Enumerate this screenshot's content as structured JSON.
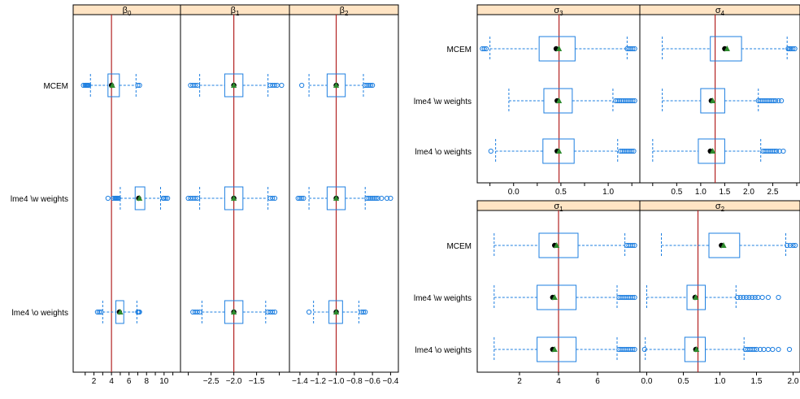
{
  "colors": {
    "strip_bg": "#FFE4C4",
    "box": "#1E7FE0",
    "median": "#000000",
    "mean": "#2E8B2E",
    "truth_line": "#B22222",
    "frame": "#000000"
  },
  "methods": [
    "MCEM",
    "lme4 \\w weights",
    "lme4 \\o weights"
  ],
  "chart_data": [
    {
      "type": "boxplot",
      "layout": "left",
      "panels": [
        {
          "id": "beta0",
          "symbol": "β",
          "sub": "0",
          "xlim": [
            0.0,
            11.5
          ],
          "ticks": [
            2,
            4,
            6,
            8,
            10
          ],
          "tick_labels": [
            "2",
            "4",
            "6",
            "8",
            "10"
          ],
          "minor_ticks": [
            1,
            3,
            5,
            7,
            9,
            11
          ],
          "truth": 4.0,
          "stats": [
            {
              "method": "MCEM",
              "whisker_low": 1.6,
              "q1": 3.6,
              "median": 4.0,
              "q3": 4.9,
              "whisker_high": 6.8,
              "mean": 4.1,
              "outliers": [
                0.8,
                1.0,
                1.1,
                1.2,
                1.3,
                1.4,
                7.0,
                7.2
              ]
            },
            {
              "method": "lme4 \\w weights",
              "whisker_low": 5.0,
              "q1": 6.7,
              "median": 7.1,
              "q3": 7.8,
              "whisker_high": 9.6,
              "mean": 7.2,
              "outliers": [
                3.6,
                4.2,
                4.4,
                4.5,
                4.6,
                4.7,
                4.8,
                9.9,
                10.0,
                10.2,
                10.4
              ]
            },
            {
              "method": "lme4 \\o weights",
              "whisker_low": 3.0,
              "q1": 4.5,
              "median": 4.9,
              "q3": 5.4,
              "whisker_high": 6.9,
              "mean": 5.0,
              "outliers": [
                2.4,
                2.6,
                2.8,
                7.0,
                7.1,
                7.2
              ]
            }
          ]
        },
        {
          "id": "beta1",
          "symbol": "β",
          "sub": "1",
          "xlim": [
            -3.1,
            -0.85
          ],
          "ticks": [
            -2.5,
            -2.0,
            -1.5
          ],
          "tick_labels": [
            "−2.5",
            "−2.0",
            "−1.5"
          ],
          "minor_ticks": [
            -3.0,
            -1.0
          ],
          "truth": -2.0,
          "stats": [
            {
              "method": "MCEM",
              "whisker_low": -2.75,
              "q1": -2.2,
              "median": -2.0,
              "q3": -1.8,
              "whisker_high": -1.25,
              "mean": -2.0,
              "outliers": [
                -2.95,
                -2.9,
                -2.85,
                -2.8,
                -1.2,
                -1.15,
                -1.1,
                -1.05,
                -0.95
              ]
            },
            {
              "method": "lme4 \\w weights",
              "whisker_low": -2.75,
              "q1": -2.2,
              "median": -2.0,
              "q3": -1.8,
              "whisker_high": -1.25,
              "mean": -2.0,
              "outliers": [
                -3.0,
                -2.95,
                -2.9,
                -2.85,
                -2.8,
                -1.2,
                -1.15,
                -1.1
              ]
            },
            {
              "method": "lme4 \\o weights",
              "whisker_low": -2.7,
              "q1": -2.2,
              "median": -2.0,
              "q3": -1.8,
              "whisker_high": -1.3,
              "mean": -2.0,
              "outliers": [
                -2.9,
                -2.85,
                -2.8,
                -2.75,
                -1.25,
                -1.2,
                -1.15,
                -1.1
              ]
            }
          ]
        },
        {
          "id": "beta2",
          "symbol": "β",
          "sub": "2",
          "xlim": [
            -1.48,
            -0.35
          ],
          "ticks": [
            -1.4,
            -1.2,
            -1.0,
            -0.8,
            -0.6,
            -0.4
          ],
          "tick_labels": [
            "−1.4",
            "−1.2",
            "−1.0",
            "−0.8",
            "−0.6",
            "−0.4"
          ],
          "minor_ticks": [],
          "truth": -1.0,
          "stats": [
            {
              "method": "MCEM",
              "whisker_low": -1.3,
              "q1": -1.1,
              "median": -1.0,
              "q3": -0.9,
              "whisker_high": -0.7,
              "mean": -1.0,
              "outliers": [
                -1.38,
                -0.68,
                -0.66,
                -0.64,
                -0.62,
                -0.6
              ]
            },
            {
              "method": "lme4 \\w weights",
              "whisker_low": -1.3,
              "q1": -1.1,
              "median": -1.0,
              "q3": -0.9,
              "whisker_high": -0.68,
              "mean": -1.0,
              "outliers": [
                -1.42,
                -1.4,
                -1.38,
                -1.36,
                -0.66,
                -0.64,
                -0.62,
                -0.6,
                -0.58,
                -0.56,
                -0.54,
                -0.5,
                -0.44,
                -0.4
              ]
            },
            {
              "method": "lme4 \\o weights",
              "whisker_low": -1.25,
              "q1": -1.08,
              "median": -1.0,
              "q3": -0.93,
              "whisker_high": -0.75,
              "mean": -1.0,
              "outliers": [
                -1.3,
                -0.72,
                -0.7,
                -0.68
              ]
            }
          ]
        }
      ]
    },
    {
      "type": "boxplot",
      "layout": "right-top",
      "panels": [
        {
          "id": "sigma3",
          "symbol": "σ",
          "sub": "3",
          "xlim": [
            -0.35,
            1.3
          ],
          "ticks": [
            0.0,
            0.5,
            1.0
          ],
          "tick_labels": [
            "0.0",
            "0.5",
            "1.0"
          ],
          "minor_ticks": [
            -0.25,
            0.25,
            0.75,
            1.25
          ],
          "truth": 0.48,
          "stats": [
            {
              "method": "MCEM",
              "whisker_low": -0.25,
              "q1": 0.27,
              "median": 0.45,
              "q3": 0.65,
              "whisker_high": 1.2,
              "mean": 0.48,
              "outliers": [
                -0.33,
                -0.31,
                -0.29,
                1.2,
                1.22,
                1.24,
                1.26,
                1.28
              ]
            },
            {
              "method": "lme4 \\w weights",
              "whisker_low": -0.05,
              "q1": 0.32,
              "median": 0.46,
              "q3": 0.62,
              "whisker_high": 1.05,
              "mean": 0.48,
              "outliers": [
                1.08,
                1.1,
                1.12,
                1.14,
                1.16,
                1.18,
                1.2,
                1.22,
                1.24,
                1.26,
                1.28
              ]
            },
            {
              "method": "lme4 \\o weights",
              "whisker_low": -0.19,
              "q1": 0.31,
              "median": 0.46,
              "q3": 0.64,
              "whisker_high": 1.1,
              "mean": 0.48,
              "outliers": [
                -0.24,
                1.13,
                1.15,
                1.17,
                1.19,
                1.21,
                1.23,
                1.25,
                1.27
              ]
            }
          ]
        },
        {
          "id": "sigma4",
          "symbol": "σ",
          "sub": "4",
          "xlim": [
            -0.2,
            3.0
          ],
          "ticks": [
            0.5,
            1.0,
            1.5,
            2.0,
            2.5
          ],
          "tick_labels": [
            "0.5",
            "1.0",
            "1.5",
            "2.0",
            "2.5"
          ],
          "minor_ticks": [
            0.0,
            3.0
          ],
          "truth": 1.3,
          "stats": [
            {
              "method": "MCEM",
              "whisker_low": 0.2,
              "q1": 1.2,
              "median": 1.5,
              "q3": 1.85,
              "whisker_high": 2.8,
              "mean": 1.55,
              "outliers": [
                2.82,
                2.85,
                2.88,
                2.92,
                2.96
              ]
            },
            {
              "method": "lme4 \\w weights",
              "whisker_low": 0.2,
              "q1": 1.0,
              "median": 1.22,
              "q3": 1.5,
              "whisker_high": 2.2,
              "mean": 1.25,
              "outliers": [
                2.2,
                2.24,
                2.28,
                2.32,
                2.36,
                2.4,
                2.44,
                2.48,
                2.52,
                2.56,
                2.62,
                2.68
              ]
            },
            {
              "method": "lme4 \\o weights",
              "whisker_low": 0.0,
              "q1": 0.95,
              "median": 1.2,
              "q3": 1.5,
              "whisker_high": 2.25,
              "mean": 1.25,
              "outliers": [
                2.3,
                2.34,
                2.38,
                2.42,
                2.46,
                2.5,
                2.54,
                2.58,
                2.64,
                2.72
              ]
            }
          ]
        }
      ]
    },
    {
      "type": "boxplot",
      "layout": "right-bottom",
      "panels": [
        {
          "id": "sigma1",
          "symbol": "σ",
          "sub": "1",
          "xlim": [
            0.0,
            8.0
          ],
          "ticks": [
            2,
            4,
            6
          ],
          "tick_labels": [
            "2",
            "4",
            "6"
          ],
          "minor_ticks": [],
          "truth": 4.0,
          "stats": [
            {
              "method": "MCEM",
              "whisker_low": 0.7,
              "q1": 3.0,
              "median": 3.8,
              "q3": 5.0,
              "whisker_high": 7.4,
              "mean": 3.9,
              "outliers": [
                7.5,
                7.6,
                7.7,
                7.8,
                7.9
              ]
            },
            {
              "method": "lme4 \\w weights",
              "whisker_low": 0.7,
              "q1": 2.9,
              "median": 3.7,
              "q3": 4.9,
              "whisker_high": 7.0,
              "mean": 3.8,
              "outliers": [
                7.1,
                7.2,
                7.3,
                7.4,
                7.5,
                7.6,
                7.7,
                7.8,
                7.9
              ]
            },
            {
              "method": "lme4 \\o weights",
              "whisker_low": 0.7,
              "q1": 2.9,
              "median": 3.7,
              "q3": 4.9,
              "whisker_high": 7.0,
              "mean": 3.8,
              "outliers": [
                7.1,
                7.2,
                7.3,
                7.4,
                7.5,
                7.6,
                7.7,
                7.8,
                7.9
              ]
            }
          ]
        },
        {
          "id": "sigma2",
          "symbol": "σ",
          "sub": "2",
          "xlim": [
            -0.05,
            2.05
          ],
          "ticks": [
            0.0,
            0.5,
            1.0,
            1.5,
            2.0
          ],
          "tick_labels": [
            "0.0",
            "0.5",
            "1.0",
            "1.5",
            "2.0"
          ],
          "minor_ticks": [],
          "truth": 0.7,
          "stats": [
            {
              "method": "MCEM",
              "whisker_low": 0.2,
              "q1": 0.85,
              "median": 1.02,
              "q3": 1.27,
              "whisker_high": 1.9,
              "mean": 1.05,
              "outliers": [
                1.92,
                1.96,
                2.0,
                2.03
              ]
            },
            {
              "method": "lme4 \\w weights",
              "whisker_low": 0.0,
              "q1": 0.55,
              "median": 0.66,
              "q3": 0.8,
              "whisker_high": 1.22,
              "mean": 0.67,
              "outliers": [
                1.24,
                1.28,
                1.32,
                1.36,
                1.4,
                1.44,
                1.48,
                1.52,
                1.58,
                1.66,
                1.8
              ]
            },
            {
              "method": "lme4 \\o weights",
              "whisker_low": -0.02,
              "q1": 0.52,
              "median": 0.67,
              "q3": 0.8,
              "whisker_high": 1.33,
              "mean": 0.68,
              "outliers": [
                -0.03,
                1.35,
                1.38,
                1.41,
                1.44,
                1.47,
                1.5,
                1.55,
                1.6,
                1.66,
                1.72,
                1.8,
                1.95
              ]
            }
          ]
        }
      ]
    }
  ]
}
